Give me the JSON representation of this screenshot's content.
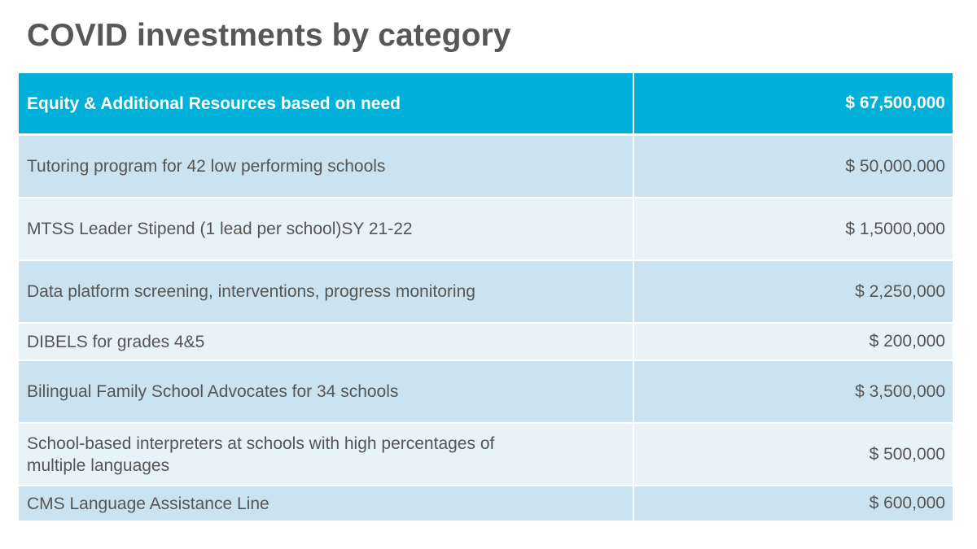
{
  "title": "COVID investments by category",
  "table": {
    "header": {
      "label": "Equity & Additional Resources based on need",
      "amount": "$ 67,500,000"
    },
    "rows": [
      {
        "label": "Tutoring program for 42 low performing schools",
        "amount": "$ 50,000.000"
      },
      {
        "label": "MTSS Leader Stipend (1 lead per school)SY 21-22",
        "amount": "$ 1,5000,000"
      },
      {
        "label": "Data platform screening, interventions, progress monitoring",
        "amount": "$ 2,250,000"
      },
      {
        "label": "DIBELS for grades 4&5",
        "amount": "$ 200,000"
      },
      {
        "label": "Bilingual Family School Advocates for 34 schools",
        "amount": "$ 3,500,000"
      },
      {
        "label": "School-based interpreters  at schools with high percentages of multiple languages",
        "amount": "$ 500,000"
      },
      {
        "label": "CMS Language Assistance Line",
        "amount": "$ 600,000"
      }
    ]
  },
  "colors": {
    "header_background": "#00b0d8",
    "row_dark": "#cbe3f0",
    "row_light": "#e7f2f9",
    "title_text": "#575757",
    "body_text": "#555555"
  }
}
